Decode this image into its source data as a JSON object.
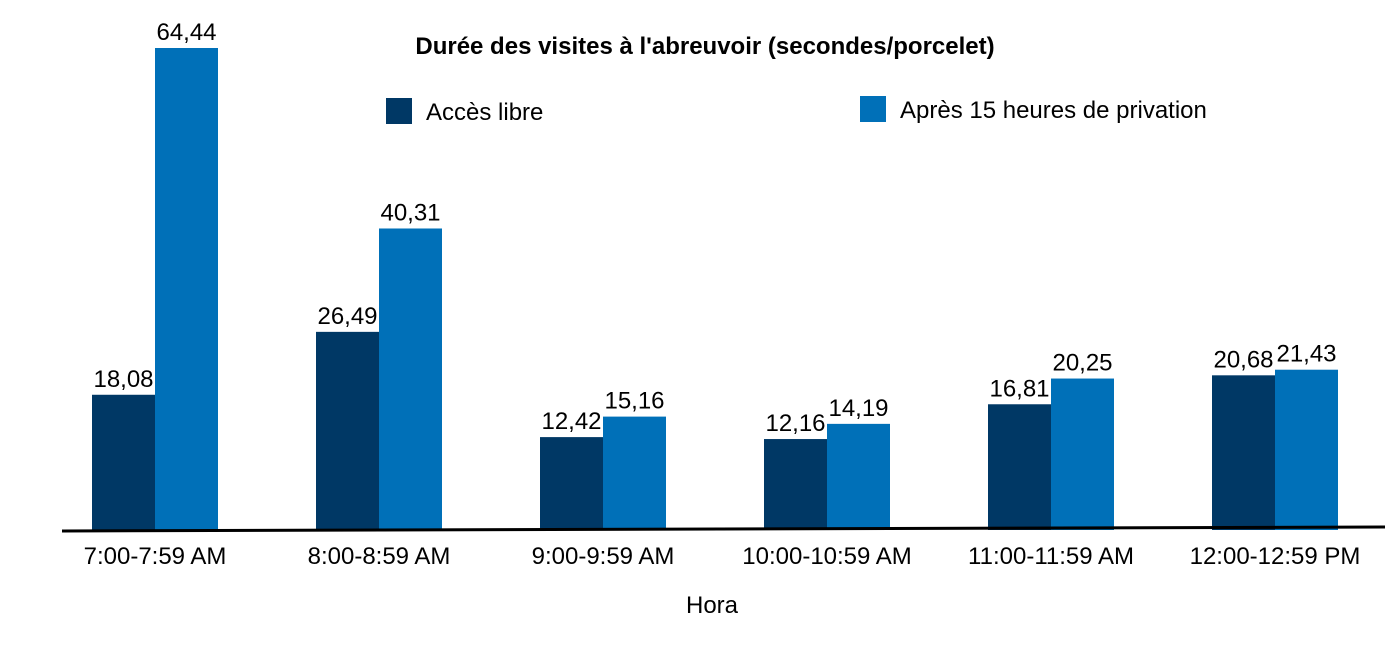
{
  "chart_data": {
    "type": "bar",
    "title": "Durée des visites à l'abreuvoir (secondes/porcelet)",
    "x_label": "Hora",
    "categories": [
      "7:00-7:59 AM",
      "8:00-8:59 AM",
      "9:00-9:59 AM",
      "10:00-10:59 AM",
      "11:00-11:59 AM",
      "12:00-12:59 PM"
    ],
    "series": [
      {
        "name": "Accès libre",
        "color": "#003865",
        "values": [
          18.08,
          26.49,
          12.42,
          12.16,
          16.81,
          20.68
        ],
        "value_labels": [
          "18,08",
          "26,49",
          "12,42",
          "12,16",
          "16,81",
          "20,68"
        ]
      },
      {
        "name": "Après 15 heures de privation",
        "color": "#0070b8",
        "values": [
          64.44,
          40.31,
          15.16,
          14.19,
          20.25,
          21.43
        ],
        "value_labels": [
          "64,44",
          "40,31",
          "15,16",
          "14,19",
          "20,25",
          "21,43"
        ]
      }
    ]
  }
}
